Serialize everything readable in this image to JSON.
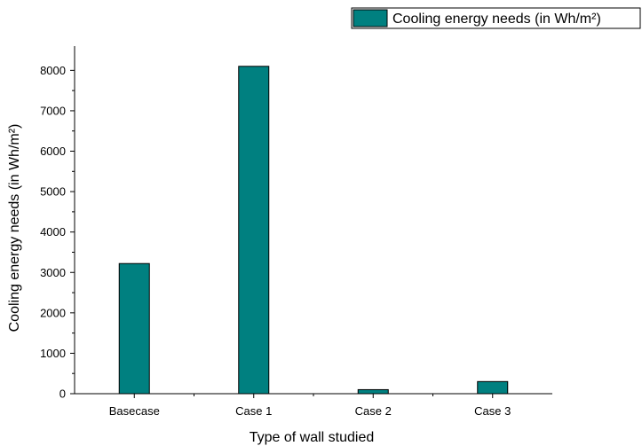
{
  "chart_data": {
    "type": "bar",
    "categories": [
      "Basecase",
      "Case 1",
      "Case 2",
      "Case 3"
    ],
    "series": [
      {
        "name": "Cooling energy needs (in Wh/m²)",
        "values": [
          3220,
          8100,
          100,
          300
        ]
      }
    ],
    "xlabel": "Type of wall studied",
    "ylabel": "Cooling energy needs (in Wh/m²)",
    "ylim": [
      0,
      8600
    ],
    "yticks": [
      0,
      1000,
      2000,
      3000,
      4000,
      5000,
      6000,
      7000,
      8000
    ],
    "grid": false,
    "legend_position": "top-right",
    "bar_color": "#008080"
  }
}
